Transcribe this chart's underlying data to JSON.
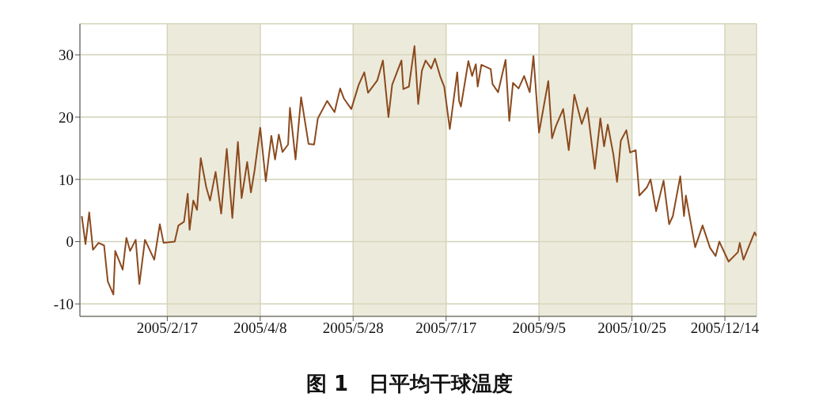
{
  "chart_data": {
    "type": "line",
    "title": "图 1　日平均干球温度",
    "x": [
      "2005-01-02",
      "2005-01-04",
      "2005-01-06",
      "2005-01-08",
      "2005-01-11",
      "2005-01-14",
      "2005-01-16",
      "2005-01-19",
      "2005-01-20",
      "2005-01-24",
      "2005-01-26",
      "2005-01-28",
      "2005-01-31",
      "2005-02-02",
      "2005-02-05",
      "2005-02-10",
      "2005-02-13",
      "2005-02-15",
      "2005-02-21",
      "2005-02-23",
      "2005-02-26",
      "2005-02-28",
      "2005-03-01",
      "2005-03-03",
      "2005-03-05",
      "2005-03-07",
      "2005-03-10",
      "2005-03-12",
      "2005-03-15",
      "2005-03-18",
      "2005-03-21",
      "2005-03-24",
      "2005-03-27",
      "2005-03-29",
      "2005-04-01",
      "2005-04-03",
      "2005-04-05",
      "2005-04-08",
      "2005-04-11",
      "2005-04-14",
      "2005-04-16",
      "2005-04-18",
      "2005-04-20",
      "2005-04-23",
      "2005-04-24",
      "2005-04-27",
      "2005-04-30",
      "2005-05-04",
      "2005-05-07",
      "2005-05-09",
      "2005-05-14",
      "2005-05-18",
      "2005-05-21",
      "2005-05-23",
      "2005-05-27",
      "2005-05-31",
      "2005-06-03",
      "2005-06-05",
      "2005-06-10",
      "2005-06-13",
      "2005-06-16",
      "2005-06-18",
      "2005-06-23",
      "2005-06-24",
      "2005-06-27",
      "2005-06-30",
      "2005-07-02",
      "2005-07-04",
      "2005-07-06",
      "2005-07-09",
      "2005-07-11",
      "2005-07-14",
      "2005-07-16",
      "2005-07-19",
      "2005-07-23",
      "2005-07-24",
      "2005-07-25",
      "2005-07-29",
      "2005-07-31",
      "2005-08-02",
      "2005-08-03",
      "2005-08-05",
      "2005-08-10",
      "2005-08-11",
      "2005-08-14",
      "2005-08-18",
      "2005-08-20",
      "2005-08-22",
      "2005-08-25",
      "2005-08-28",
      "2005-08-31",
      "2005-09-02",
      "2005-09-05",
      "2005-09-10",
      "2005-09-12",
      "2005-09-14",
      "2005-09-18",
      "2005-09-21",
      "2005-09-24",
      "2005-09-28",
      "2005-10-01",
      "2005-10-05",
      "2005-10-08",
      "2005-10-10",
      "2005-10-12",
      "2005-10-15",
      "2005-10-17",
      "2005-10-19",
      "2005-10-22",
      "2005-10-24",
      "2005-10-27",
      "2005-10-29",
      "2005-11-02",
      "2005-11-04",
      "2005-11-07",
      "2005-11-11",
      "2005-11-14",
      "2005-11-16",
      "2005-11-20",
      "2005-11-22",
      "2005-11-23",
      "2005-11-28",
      "2005-12-02",
      "2005-12-06",
      "2005-12-09",
      "2005-12-11",
      "2005-12-16",
      "2005-12-21",
      "2005-12-22",
      "2005-12-24",
      "2005-12-30",
      "2005-12-31"
    ],
    "series": [
      {
        "color": "#8b4a1e",
        "values": [
          4.1,
          -0.4,
          4.7,
          -1.3,
          -0.2,
          -0.6,
          -6.4,
          -8.5,
          -1.5,
          -4.5,
          0.6,
          -1.5,
          0.3,
          -6.8,
          0.3,
          -2.9,
          2.8,
          -0.2,
          0,
          2.6,
          3.2,
          7.7,
          1.9,
          6.6,
          5.1,
          13.4,
          8.7,
          6.6,
          11.2,
          4.5,
          14.9,
          3.8,
          16,
          7,
          12.8,
          7.9,
          11.5,
          18.3,
          9.7,
          17,
          13.2,
          17.2,
          14.4,
          15.6,
          21.5,
          13.2,
          23.2,
          15.7,
          15.6,
          19.8,
          22.6,
          20.8,
          24.6,
          23,
          21.3,
          25.2,
          27.2,
          23.9,
          25.9,
          29.1,
          20,
          25.2,
          29.1,
          24.5,
          24.9,
          31.4,
          22.1,
          27.5,
          29.1,
          27.8,
          29.4,
          26.4,
          24.9,
          18.1,
          27.2,
          22.6,
          21.7,
          29,
          26.6,
          28.5,
          24.9,
          28.4,
          27.7,
          25.3,
          24,
          29.2,
          19.4,
          25.5,
          24.6,
          26.6,
          24,
          29.8,
          17.5,
          25.8,
          16.6,
          18.5,
          21.3,
          14.7,
          23.6,
          18.9,
          21.5,
          11.7,
          19.8,
          15.3,
          18.8,
          14,
          9.6,
          16.2,
          17.9,
          14.3,
          14.7,
          7.4,
          8.7,
          10,
          4.9,
          9.8,
          2.8,
          4.1,
          10.5,
          4.1,
          7.4,
          -0.9,
          2.6,
          -1,
          -2.3,
          0,
          -3.2,
          -1.7,
          -0.2,
          -2.9,
          1.5,
          0.9
        ]
      }
    ],
    "xlim": [
      "2005-01-01",
      "2005-12-31"
    ],
    "xticks": [
      {
        "value": "2005-02-17",
        "label": "2005/2/17"
      },
      {
        "value": "2005-04-08",
        "label": "2005/4/8"
      },
      {
        "value": "2005-05-28",
        "label": "2005/5/28"
      },
      {
        "value": "2005-07-17",
        "label": "2005/7/17"
      },
      {
        "value": "2005-09-05",
        "label": "2005/9/5"
      },
      {
        "value": "2005-10-25",
        "label": "2005/10/25"
      },
      {
        "value": "2005-12-14",
        "label": "2005/12/14"
      }
    ],
    "ylim": [
      -12,
      35
    ],
    "yticks": [
      -10,
      0,
      10,
      20,
      30
    ],
    "grid": true,
    "marker": "none",
    "line_style": "solid",
    "bands": [
      {
        "axis": "x",
        "from": "2005-02-17",
        "to": "2005-04-08",
        "color": "#dcd9bd"
      },
      {
        "axis": "x",
        "from": "2005-05-28",
        "to": "2005-07-17",
        "color": "#dcd9bd"
      },
      {
        "axis": "x",
        "from": "2005-09-05",
        "to": "2005-10-25",
        "color": "#dcd9bd"
      },
      {
        "axis": "x",
        "from": "2005-12-14",
        "to": "2005-12-31",
        "color": "#dcd9bd"
      }
    ]
  }
}
